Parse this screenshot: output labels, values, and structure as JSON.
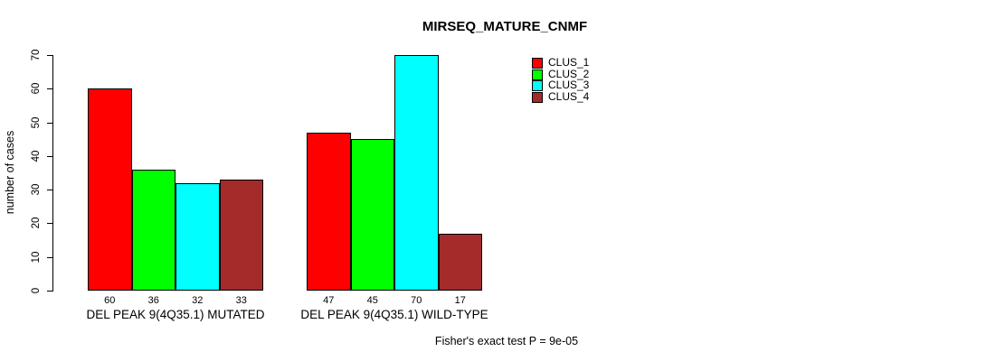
{
  "title": "MIRSEQ_MATURE_CNMF",
  "footnote": "Fisher's exact test P = 9e-05",
  "chart_data": {
    "type": "bar",
    "title": "MIRSEQ_MATURE_CNMF",
    "xlabel": "",
    "ylabel": "number of cases",
    "ylim": [
      0,
      70
    ],
    "yticks": [
      0,
      10,
      20,
      30,
      40,
      50,
      60,
      70
    ],
    "grid": false,
    "legend_position": "top-right",
    "categories": [
      "DEL PEAK 9(4Q35.1) MUTATED",
      "DEL PEAK 9(4Q35.1) WILD-TYPE"
    ],
    "series": [
      {
        "name": "CLUS_1",
        "color": "#FF0000",
        "values": [
          60,
          47
        ]
      },
      {
        "name": "CLUS_2",
        "color": "#00FF00",
        "values": [
          36,
          45
        ]
      },
      {
        "name": "CLUS_3",
        "color": "#00FFFF",
        "values": [
          32,
          70
        ]
      },
      {
        "name": "CLUS_4",
        "color": "#A52A2A",
        "values": [
          33,
          17
        ]
      }
    ],
    "bar_value_labels": [
      [
        60,
        36,
        32,
        33
      ],
      [
        47,
        45,
        70,
        17
      ]
    ],
    "annotation": "Fisher's exact test P = 9e-05"
  }
}
